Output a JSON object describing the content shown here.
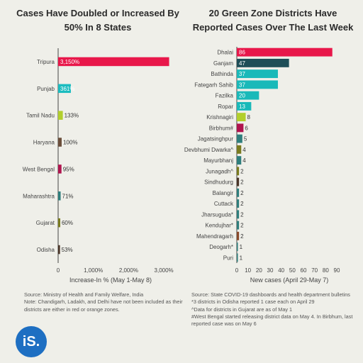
{
  "chart_data": [
    {
      "type": "bar",
      "orientation": "horizontal",
      "title": "Cases Have Doubled or Increased By 50% In 8 States",
      "xlabel": "Increase-In % (May 1-May 8)",
      "categories": [
        "Tripura",
        "Punjab",
        "Tamil Nadu",
        "Haryana",
        "West Bengal",
        "Maharashtra",
        "Gujarat",
        "Odisha"
      ],
      "values": [
        3150,
        361,
        133,
        100,
        95,
        71,
        60,
        53
      ],
      "value_labels": [
        "3,150%",
        "361%",
        "133%",
        "100%",
        "95%",
        "71%",
        "60%",
        "53%"
      ],
      "colors": [
        "#e8174a",
        "#1bbcbf",
        "#b2cf2c",
        "#6b4e3a",
        "#b0144e",
        "#2e7e7c",
        "#7a7b1e",
        "#4a3528"
      ],
      "xlim": [
        0,
        3300
      ],
      "xticks": [
        0,
        1000,
        2000,
        3000
      ],
      "xtick_labels": [
        "0",
        "1,000%",
        "2,000%",
        "3,000%"
      ],
      "grid": false
    },
    {
      "type": "bar",
      "orientation": "horizontal",
      "title": "20 Green Zone Districts Have Reported Cases Over The Last Week",
      "xlabel": "New cases (April 29-May 7)",
      "categories": [
        "Dhalai",
        "Ganjam",
        "Bathinda",
        "Fategarh Sahib",
        "Fazilka",
        "Ropar",
        "Krishnagiri",
        "Birbhum#",
        "Jagatsinghpur",
        "Devbhumi Dwarka^",
        "Mayurbhanj",
        "Junagadh^",
        "Sindhudurg",
        "Balangir",
        "Cuttack",
        "Jharsuguda*",
        "Kendujhar*",
        "Mahendragarh",
        "Deogarh*",
        "Puri"
      ],
      "values": [
        86,
        47,
        37,
        37,
        20,
        13,
        8,
        6,
        5,
        4,
        4,
        2,
        2,
        2,
        2,
        2,
        2,
        2,
        1,
        1
      ],
      "colors": [
        "#e8174a",
        "#1f4e57",
        "#19b9b9",
        "#19b9b9",
        "#19b9b9",
        "#19b9b9",
        "#b2cf2c",
        "#b0144e",
        "#2e7e7c",
        "#7a7b1e",
        "#2e7e7c",
        "#7a7b1e",
        "#4a3528",
        "#2e7e7c",
        "#2e7e7c",
        "#2e7e7c",
        "#2e7e7c",
        "#8a4a2a",
        "#2e7e7c",
        "#2e7e7c"
      ],
      "xlim": [
        0,
        90
      ],
      "xticks": [
        0,
        10,
        20,
        30,
        40,
        50,
        60,
        70,
        80,
        90
      ],
      "grid": false
    }
  ],
  "notes_left": [
    "Source: Ministry of Health and Family Welfare, India",
    "Note: Chandigarh, Ladakh, and Delhi have not been included as their districts are either in red or orange zones."
  ],
  "notes_right": [
    "Source: State COVID-19 dashboards and health department bulletins",
    "*3 districts in Odisha reported 1 case each on April 29",
    "^Data for districts in Gujarat are as of May 1",
    "#West Bengal started releasing district data on May 4. In Birbhum, last reported case was on May 6"
  ],
  "logo": {
    "text": "iS.",
    "color": "#1e6fc2"
  }
}
